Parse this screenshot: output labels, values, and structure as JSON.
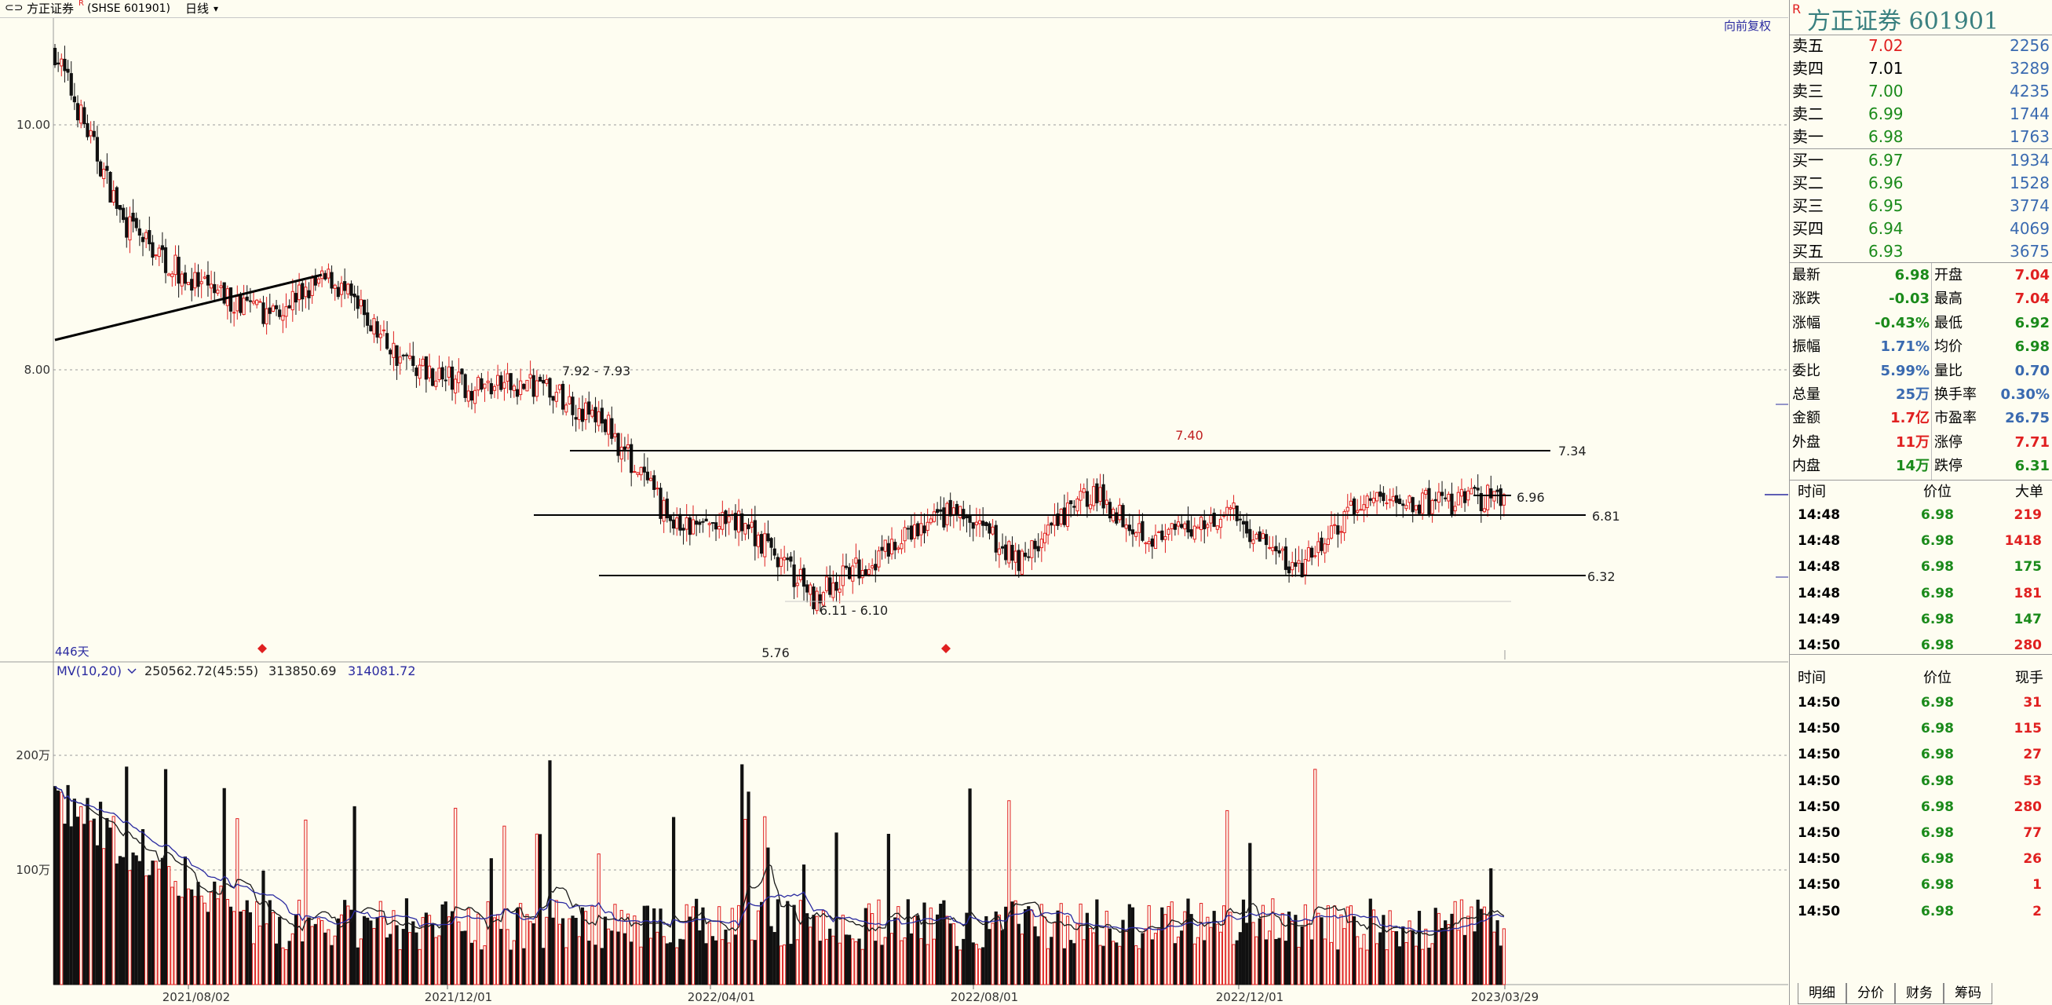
{
  "header": {
    "stock_name": "方正证券",
    "superscript": "R",
    "code_label": "(SHSE 601901)",
    "period_label": "日线",
    "restore_label": "向前复权"
  },
  "chart_data": {
    "type": "candlestick",
    "y_ticks": [
      "10.00",
      "8.00"
    ],
    "x_ticks": [
      "2021/08/02",
      "2021/12/01",
      "2022/04/01",
      "2022/08/01",
      "2022/12/01",
      "2023/03/29"
    ],
    "days_label": "446天",
    "annotations": [
      "7.92 - 7.93",
      "7.40",
      "6.11 - 6.10",
      "5.76"
    ],
    "levels": [
      {
        "label": "7.34",
        "value": 7.34
      },
      {
        "label": "6.96",
        "value": 6.96
      },
      {
        "label": "6.81",
        "value": 6.81
      },
      {
        "label": "6.32",
        "value": 6.32
      }
    ],
    "volume_indicator": {
      "name": "MV(10,20)",
      "value1": "250562.72(45:55)",
      "value2": "313850.69",
      "value3": "314081.72"
    },
    "volume_ticks": [
      "200万",
      "100万"
    ],
    "price_anchors": [
      {
        "date": "2021/06",
        "close": 10.6
      },
      {
        "date": "2021/07",
        "close": 9.2
      },
      {
        "date": "2021/08",
        "close": 8.7
      },
      {
        "date": "2021/09",
        "close": 8.45
      },
      {
        "date": "2021/10",
        "close": 8.75
      },
      {
        "date": "2021/11",
        "close": 8.1
      },
      {
        "date": "2021/12",
        "close": 7.85
      },
      {
        "date": "2022/01",
        "close": 7.88
      },
      {
        "date": "2022/02",
        "close": 7.55
      },
      {
        "date": "2022/03",
        "close": 6.7
      },
      {
        "date": "2022/04",
        "close": 6.75
      },
      {
        "date": "2022/05",
        "close": 6.15
      },
      {
        "date": "2022/06",
        "close": 6.5
      },
      {
        "date": "2022/07",
        "close": 6.85
      },
      {
        "date": "2022/08",
        "close": 6.45
      },
      {
        "date": "2022/09",
        "close": 7.0
      },
      {
        "date": "2022/10",
        "close": 6.6
      },
      {
        "date": "2022/11",
        "close": 6.85
      },
      {
        "date": "2022/12",
        "close": 6.35
      },
      {
        "date": "2023/01",
        "close": 6.95
      },
      {
        "date": "2023/02",
        "close": 6.9
      },
      {
        "date": "2023/03",
        "close": 6.98
      }
    ]
  },
  "orderbook": {
    "title": "方正证券  601901",
    "sell": [
      {
        "label": "卖五",
        "price": "7.02",
        "volume": "2256",
        "color": "#e02020"
      },
      {
        "label": "卖四",
        "price": "7.01",
        "volume": "3289",
        "color": "#000000"
      },
      {
        "label": "卖三",
        "price": "7.00",
        "volume": "4235",
        "color": "#1a8a1a"
      },
      {
        "label": "卖二",
        "price": "6.99",
        "volume": "1744",
        "color": "#1a8a1a"
      },
      {
        "label": "卖一",
        "price": "6.98",
        "volume": "1763",
        "color": "#1a8a1a"
      }
    ],
    "buy": [
      {
        "label": "买一",
        "price": "6.97",
        "volume": "1934",
        "color": "#1a8a1a"
      },
      {
        "label": "买二",
        "price": "6.96",
        "volume": "1528",
        "color": "#1a8a1a"
      },
      {
        "label": "买三",
        "price": "6.95",
        "volume": "3774",
        "color": "#1a8a1a"
      },
      {
        "label": "买四",
        "price": "6.94",
        "volume": "4069",
        "color": "#1a8a1a"
      },
      {
        "label": "买五",
        "price": "6.93",
        "volume": "3675",
        "color": "#1a8a1a"
      }
    ]
  },
  "quote": [
    {
      "k1": "最新",
      "v1": "6.98",
      "c1": "#1a8a1a",
      "k2": "开盘",
      "v2": "7.04",
      "c2": "#e02020"
    },
    {
      "k1": "涨跌",
      "v1": "-0.03",
      "c1": "#1a8a1a",
      "k2": "最高",
      "v2": "7.04",
      "c2": "#e02020"
    },
    {
      "k1": "涨幅",
      "v1": "-0.43%",
      "c1": "#1a8a1a",
      "k2": "最低",
      "v2": "6.92",
      "c2": "#1a8a1a"
    },
    {
      "k1": "振幅",
      "v1": "1.71%",
      "c1": "#3a6ab0",
      "k2": "均价",
      "v2": "6.98",
      "c2": "#1a8a1a"
    },
    {
      "k1": "委比",
      "v1": "5.99%",
      "c1": "#3a6ab0",
      "k2": "量比",
      "v2": "0.70",
      "c2": "#3a6ab0"
    },
    {
      "k1": "总量",
      "v1": "25万",
      "c1": "#3a6ab0",
      "k2": "换手率",
      "v2": "0.30%",
      "c2": "#3a6ab0"
    },
    {
      "k1": "金额",
      "v1": "1.7亿",
      "c1": "#e02020",
      "k2": "市盈率",
      "v2": "26.75",
      "c2": "#3a6ab0"
    },
    {
      "k1": "外盘",
      "v1": "11万",
      "c1": "#e02020",
      "k2": "涨停",
      "v2": "7.71",
      "c2": "#e02020"
    },
    {
      "k1": "内盘",
      "v1": "14万",
      "c1": "#1a8a1a",
      "k2": "跌停",
      "v2": "6.31",
      "c2": "#1a8a1a"
    }
  ],
  "big_trades": {
    "headers": [
      "时间",
      "价位",
      "大单"
    ],
    "rows": [
      {
        "time": "14:48",
        "price": "6.98",
        "qty": "219",
        "qc": "#e02020"
      },
      {
        "time": "14:48",
        "price": "6.98",
        "qty": "1418",
        "qc": "#e02020"
      },
      {
        "time": "14:48",
        "price": "6.98",
        "qty": "175",
        "qc": "#1a8a1a"
      },
      {
        "time": "14:48",
        "price": "6.98",
        "qty": "181",
        "qc": "#e02020"
      },
      {
        "time": "14:49",
        "price": "6.98",
        "qty": "147",
        "qc": "#1a8a1a"
      },
      {
        "time": "14:50",
        "price": "6.98",
        "qty": "280",
        "qc": "#e02020"
      }
    ]
  },
  "ticks": {
    "headers": [
      "时间",
      "价位",
      "现手"
    ],
    "rows": [
      {
        "time": "14:50",
        "price": "6.98",
        "qty": "31",
        "qc": "#e02020"
      },
      {
        "time": "14:50",
        "price": "6.98",
        "qty": "115",
        "qc": "#e02020"
      },
      {
        "time": "14:50",
        "price": "6.98",
        "qty": "27",
        "qc": "#e02020"
      },
      {
        "time": "14:50",
        "price": "6.98",
        "qty": "53",
        "qc": "#e02020"
      },
      {
        "time": "14:50",
        "price": "6.98",
        "qty": "280",
        "qc": "#e02020"
      },
      {
        "time": "14:50",
        "price": "6.98",
        "qty": "77",
        "qc": "#e02020"
      },
      {
        "time": "14:50",
        "price": "6.98",
        "qty": "26",
        "qc": "#e02020"
      },
      {
        "time": "14:50",
        "price": "6.98",
        "qty": "1",
        "qc": "#e02020"
      },
      {
        "time": "14:50",
        "price": "6.98",
        "qty": "2",
        "qc": "#e02020"
      }
    ]
  },
  "tabs": [
    "明细",
    "分价",
    "财务",
    "筹码"
  ]
}
